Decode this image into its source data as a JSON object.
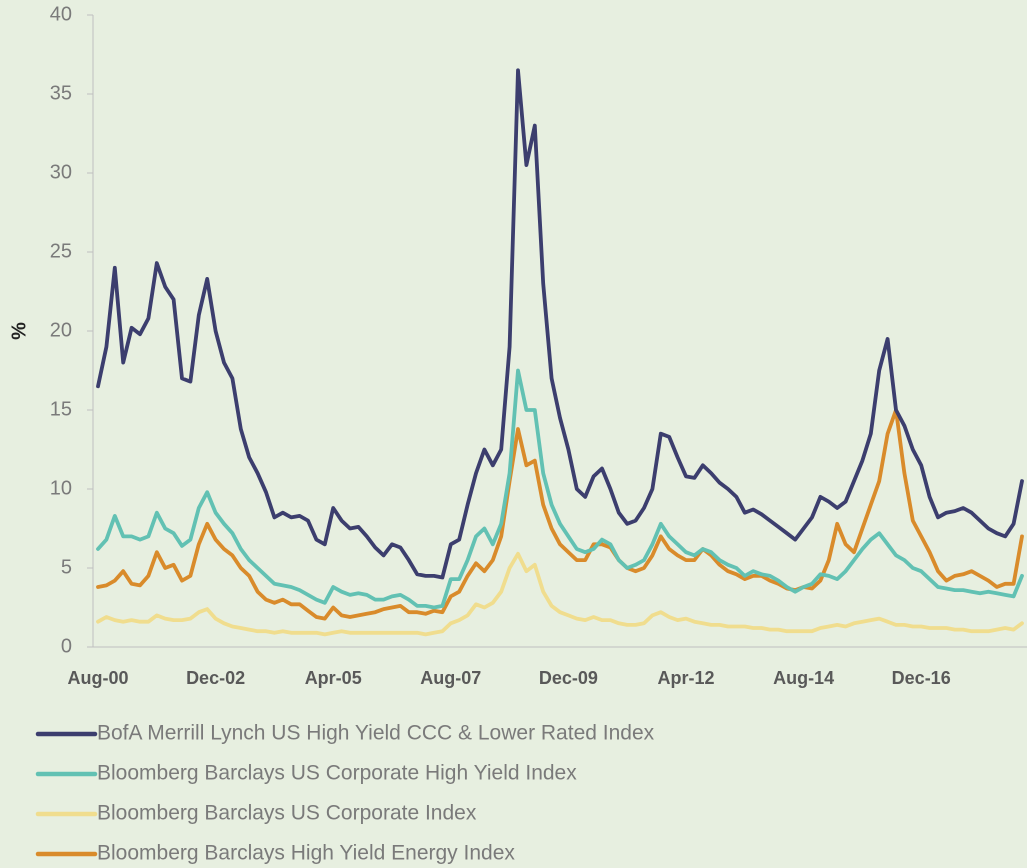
{
  "chart_data": {
    "type": "line",
    "y_label": "%",
    "categories": [
      "Aug-00",
      null,
      null,
      null,
      null,
      null,
      null,
      null,
      null,
      null,
      null,
      null,
      null,
      null,
      "Dec-02",
      null,
      null,
      null,
      null,
      null,
      null,
      null,
      null,
      null,
      null,
      null,
      null,
      null,
      "Apr-05",
      null,
      null,
      null,
      null,
      null,
      null,
      null,
      null,
      null,
      null,
      null,
      null,
      null,
      "Aug-07",
      null,
      null,
      null,
      null,
      null,
      null,
      null,
      null,
      null,
      null,
      null,
      null,
      null,
      "Dec-09",
      null,
      null,
      null,
      null,
      null,
      null,
      null,
      null,
      null,
      null,
      null,
      null,
      null,
      "Apr-12",
      null,
      null,
      null,
      null,
      null,
      null,
      null,
      null,
      null,
      null,
      null,
      null,
      null,
      "Aug-14",
      null,
      null,
      null,
      null,
      null,
      null,
      null,
      null,
      null,
      null,
      null,
      null,
      null,
      "Dec-16",
      null,
      null,
      null,
      null,
      null,
      null,
      null,
      null,
      null,
      null,
      null,
      null
    ],
    "ylim": [
      0,
      40
    ],
    "yticks": [
      0,
      5,
      10,
      15,
      20,
      25,
      30,
      35,
      40
    ],
    "series": [
      {
        "name": "BofA Merrill Lynch US High Yield CCC & Lower Rated Index",
        "color": "#3c3e6e",
        "values": [
          16.5,
          19,
          24,
          18,
          20.2,
          19.8,
          20.8,
          24.3,
          22.8,
          22,
          17,
          16.8,
          21,
          23.3,
          20,
          18,
          17,
          13.8,
          12,
          11,
          9.8,
          8.2,
          8.5,
          8.2,
          8.3,
          8,
          6.8,
          6.5,
          8.8,
          8,
          7.5,
          7.6,
          7,
          6.3,
          5.8,
          6.5,
          6.3,
          5.5,
          4.6,
          4.5,
          4.5,
          4.4,
          6.5,
          6.8,
          9,
          11,
          12.5,
          11.5,
          12.5,
          19,
          36.5,
          30.5,
          33,
          23,
          17,
          14.5,
          12.5,
          10,
          9.5,
          10.8,
          11.3,
          10,
          8.5,
          7.8,
          8,
          8.8,
          10,
          13.5,
          13.3,
          12,
          10.8,
          10.7,
          11.5,
          11,
          10.4,
          10,
          9.5,
          8.5,
          8.7,
          8.4,
          8,
          7.6,
          7.2,
          6.8,
          7.5,
          8.2,
          9.5,
          9.2,
          8.8,
          9.2,
          10.5,
          11.8,
          13.5,
          17.5,
          19.5,
          15,
          14,
          12.5,
          11.5,
          9.5,
          8.2,
          8.5,
          8.6,
          8.8,
          8.5,
          8,
          7.5,
          7.2,
          7,
          7.8,
          10.5
        ]
      },
      {
        "name": "Bloomberg Barclays US Corporate High Yield Index",
        "color": "#62c1b3",
        "values": [
          6.2,
          6.8,
          8.3,
          7,
          7,
          6.8,
          7,
          8.5,
          7.5,
          7.2,
          6.4,
          6.8,
          8.8,
          9.8,
          8.5,
          7.8,
          7.2,
          6.2,
          5.5,
          5,
          4.5,
          4,
          3.9,
          3.8,
          3.6,
          3.3,
          3,
          2.8,
          3.8,
          3.5,
          3.3,
          3.4,
          3.3,
          3,
          3,
          3.2,
          3.3,
          3,
          2.6,
          2.6,
          2.5,
          2.6,
          4.3,
          4.3,
          5.5,
          7,
          7.5,
          6.5,
          7.8,
          11,
          17.5,
          15,
          15,
          11,
          9,
          7.8,
          7,
          6.2,
          6,
          6.2,
          6.8,
          6.5,
          5.5,
          5,
          5.2,
          5.5,
          6.5,
          7.8,
          7,
          6.5,
          6,
          5.8,
          6.2,
          6,
          5.5,
          5.2,
          5,
          4.5,
          4.8,
          4.6,
          4.5,
          4.2,
          3.8,
          3.5,
          3.8,
          4,
          4.6,
          4.5,
          4.3,
          4.8,
          5.5,
          6.2,
          6.8,
          7.2,
          6.5,
          5.8,
          5.5,
          5,
          4.8,
          4.3,
          3.8,
          3.7,
          3.6,
          3.6,
          3.5,
          3.4,
          3.5,
          3.4,
          3.3,
          3.2,
          4.5
        ]
      },
      {
        "name": "Bloomberg Barclays US Corporate Index",
        "color": "#f0dd8e",
        "values": [
          1.6,
          1.9,
          1.7,
          1.6,
          1.7,
          1.6,
          1.6,
          2,
          1.8,
          1.7,
          1.7,
          1.8,
          2.2,
          2.4,
          1.8,
          1.5,
          1.3,
          1.2,
          1.1,
          1,
          1,
          0.9,
          1,
          0.9,
          0.9,
          0.9,
          0.9,
          0.8,
          0.9,
          1,
          0.9,
          0.9,
          0.9,
          0.9,
          0.9,
          0.9,
          0.9,
          0.9,
          0.9,
          0.8,
          0.9,
          1,
          1.5,
          1.7,
          2,
          2.7,
          2.5,
          2.8,
          3.5,
          5,
          5.9,
          4.8,
          5.2,
          3.5,
          2.6,
          2.2,
          2,
          1.8,
          1.7,
          1.9,
          1.7,
          1.7,
          1.5,
          1.4,
          1.4,
          1.5,
          2,
          2.2,
          1.9,
          1.7,
          1.8,
          1.6,
          1.5,
          1.4,
          1.4,
          1.3,
          1.3,
          1.3,
          1.2,
          1.2,
          1.1,
          1.1,
          1,
          1,
          1,
          1,
          1.2,
          1.3,
          1.4,
          1.3,
          1.5,
          1.6,
          1.7,
          1.8,
          1.6,
          1.4,
          1.4,
          1.3,
          1.3,
          1.2,
          1.2,
          1.2,
          1.1,
          1.1,
          1,
          1,
          1,
          1.1,
          1.2,
          1.1,
          1.5
        ]
      },
      {
        "name": "Bloomberg Barclays High Yield Energy Index",
        "color": "#d98b2b",
        "values": [
          3.8,
          3.9,
          4.2,
          4.8,
          4,
          3.9,
          4.5,
          6,
          5,
          5.2,
          4.2,
          4.5,
          6.5,
          7.8,
          6.8,
          6.2,
          5.8,
          5,
          4.5,
          3.5,
          3,
          2.8,
          3,
          2.7,
          2.7,
          2.3,
          1.9,
          1.8,
          2.5,
          2,
          1.9,
          2,
          2.1,
          2.2,
          2.4,
          2.5,
          2.6,
          2.2,
          2.2,
          2.1,
          2.3,
          2.2,
          3.2,
          3.5,
          4.5,
          5.3,
          4.8,
          5.5,
          7,
          10.5,
          13.8,
          11.5,
          11.8,
          9,
          7.5,
          6.5,
          6,
          5.5,
          5.5,
          6.5,
          6.5,
          6.3,
          5.5,
          5,
          4.8,
          5,
          5.8,
          7,
          6.2,
          5.8,
          5.5,
          5.5,
          6.2,
          5.8,
          5.2,
          4.8,
          4.6,
          4.3,
          4.5,
          4.5,
          4.2,
          4,
          3.7,
          3.6,
          3.8,
          3.7,
          4.2,
          5.5,
          7.8,
          6.5,
          6,
          7.5,
          9,
          10.5,
          13.5,
          15,
          11,
          8,
          7,
          6,
          4.8,
          4.2,
          4.5,
          4.6,
          4.8,
          4.5,
          4.2,
          3.8,
          4,
          4,
          7
        ]
      }
    ]
  }
}
